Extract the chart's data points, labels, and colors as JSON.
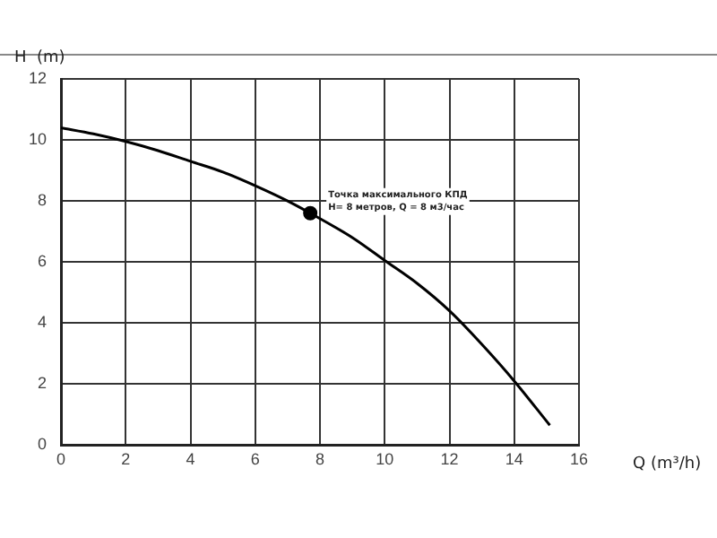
{
  "chart_data": {
    "type": "line",
    "xlabel": "Q (m³/h)",
    "ylabel": "H  (m)",
    "xlim": [
      0,
      16
    ],
    "xticks": [
      0,
      2,
      4,
      6,
      8,
      10,
      12,
      14,
      16
    ],
    "ylim": [
      0,
      12
    ],
    "yticks": [
      0,
      2,
      4,
      6,
      8,
      10,
      12
    ],
    "grid": true,
    "legend": false,
    "series": [
      {
        "type": "line",
        "color": "#000000",
        "marker": "none",
        "x": [
          0,
          1,
          2,
          3,
          4,
          5,
          6,
          7,
          7.7,
          9,
          10,
          11,
          12,
          13,
          14,
          15.1
        ],
        "values": [
          10.4,
          10.2,
          9.95,
          9.65,
          9.3,
          8.95,
          8.5,
          8.0,
          7.6,
          6.8,
          6.05,
          5.3,
          4.4,
          3.3,
          2.1,
          0.65
        ]
      },
      {
        "type": "scatter",
        "color": "#000000",
        "marker": "circle",
        "x": [
          7.7
        ],
        "values": [
          7.6
        ]
      }
    ],
    "annotations": [
      {
        "text": "Точка максимального КПД\nH= 8 метров, Q = 8 м3/час",
        "x": 7.7,
        "y": 7.6
      }
    ]
  }
}
